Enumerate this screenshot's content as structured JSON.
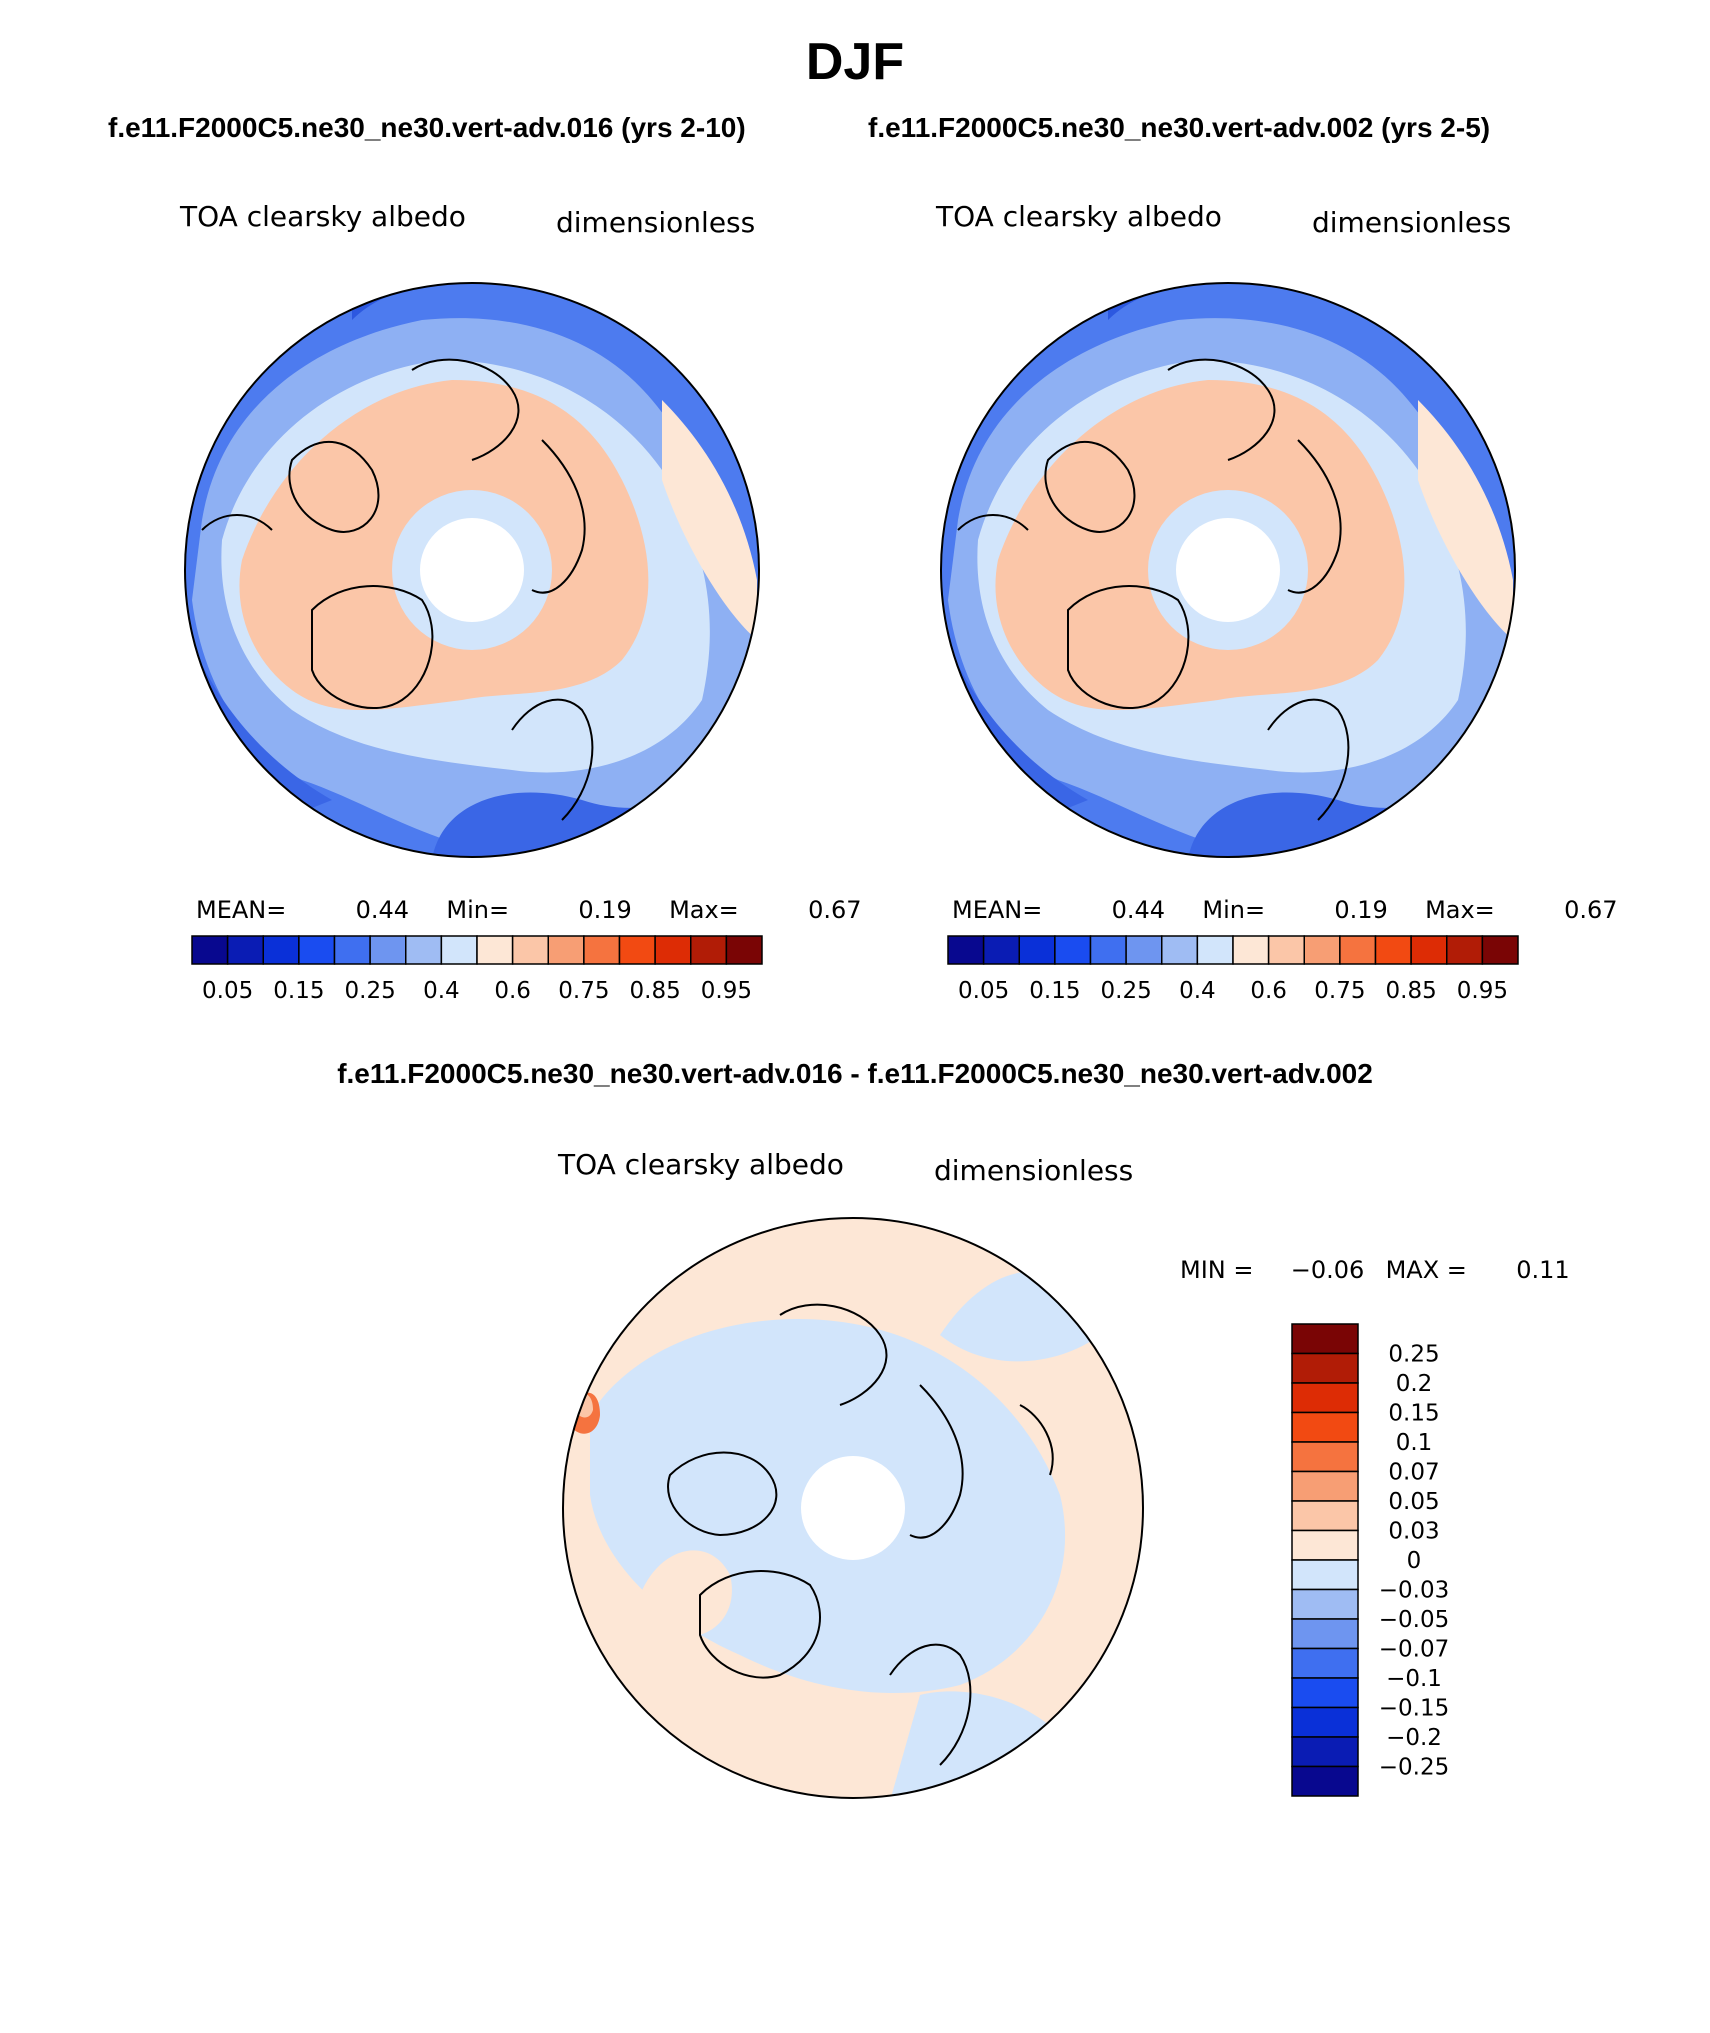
{
  "title": "DJF",
  "subtitles": {
    "left": "f.e11.F2000C5.ne30_ne30.vert-adv.016 (yrs 2-10)",
    "right": "f.e11.F2000C5.ne30_ne30.vert-adv.002 (yrs 2-5)",
    "difference": "f.e11.F2000C5.ne30_ne30.vert-adv.016 - f.e11.F2000C5.ne30_ne30.vert-adv.002"
  },
  "panels": [
    {
      "variable": "TOA clearsky albedo",
      "units": "dimensionless",
      "stats": {
        "mean_label": "MEAN=",
        "mean": "0.44",
        "min_label": "Min=",
        "min": "0.19",
        "max_label": "Max=",
        "max": "0.67"
      }
    },
    {
      "variable": "TOA clearsky albedo",
      "units": "dimensionless",
      "stats": {
        "mean_label": "MEAN=",
        "mean": "0.44",
        "min_label": "Min=",
        "min": "0.19",
        "max_label": "Max=",
        "max": "0.67"
      }
    },
    {
      "variable": "TOA clearsky albedo",
      "units": "dimensionless",
      "stats": {
        "min_label": "MIN =",
        "min": "−0.06",
        "max_label": "MAX =",
        "max": "0.11"
      }
    }
  ],
  "colorbar_main": {
    "colors": [
      "#08088f",
      "#0a1cb4",
      "#0a30d8",
      "#1a4cf0",
      "#3f6ff0",
      "#6e95f0",
      "#9fbcf3",
      "#d2e5fb",
      "#fde7d6",
      "#fbc6a8",
      "#f79e74",
      "#f5733f",
      "#f24a12",
      "#dd2c05",
      "#b11c06",
      "#7a0505"
    ],
    "tick_labels": [
      "0.05",
      "0.15",
      "0.25",
      "0.4",
      "0.6",
      "0.75",
      "0.85",
      "0.95"
    ]
  },
  "colorbar_diff": {
    "colors": [
      "#7a0505",
      "#b11c06",
      "#dd2c05",
      "#f24a12",
      "#f5733f",
      "#f79e74",
      "#fbc6a8",
      "#fde7d6",
      "#d2e5fb",
      "#9fbcf3",
      "#6e95f0",
      "#3f6ff0",
      "#1a4cf0",
      "#0a30d8",
      "#0a1cb4",
      "#08088f"
    ],
    "tick_labels": [
      "0.25",
      "0.2",
      "0.15",
      "0.1",
      "0.07",
      "0.05",
      "0.03",
      "0",
      "−0.03",
      "−0.05",
      "−0.07",
      "−0.1",
      "−0.15",
      "−0.2",
      "−0.25"
    ]
  }
}
